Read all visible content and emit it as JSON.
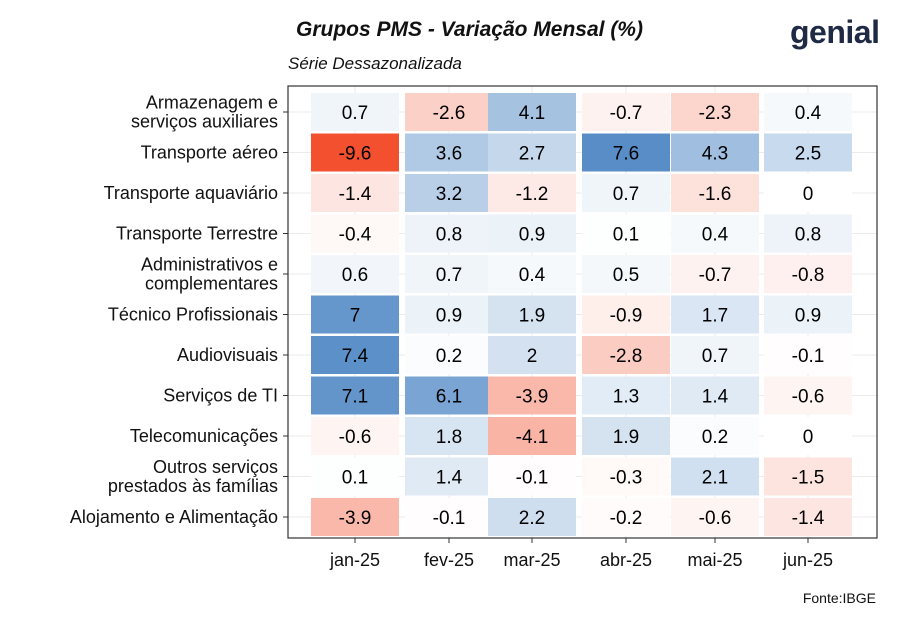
{
  "header": {
    "title": "Grupos PMS - Variação Mensal (%)",
    "subtitle": "Série Dessazonalizada",
    "brand": "genial"
  },
  "footer": {
    "source": "Fonte:IBGE"
  },
  "colors": {
    "negative_max": "#f2502e",
    "neutral": "#ffffff",
    "positive_max": "#2c6fb9",
    "panel_border": "#333333",
    "grid": "#ebebeb"
  },
  "chart_data": {
    "type": "heatmap",
    "title": "Grupos PMS - Variação Mensal (%)",
    "subtitle": "Série Dessazonalizada",
    "columns": [
      "jan-25",
      "fev-25",
      "mar-25",
      "abr-25",
      "mai-25",
      "jun-25"
    ],
    "rows": [
      {
        "label": [
          "Armazenagem e",
          "serviços auxiliares"
        ],
        "values": [
          0.7,
          -2.6,
          4.1,
          -0.7,
          -2.3,
          0.4
        ]
      },
      {
        "label": [
          "Transporte aéreo"
        ],
        "values": [
          -9.6,
          3.6,
          2.7,
          7.6,
          4.3,
          2.5
        ]
      },
      {
        "label": [
          "Transporte aquaviário"
        ],
        "values": [
          -1.4,
          3.2,
          -1.2,
          0.7,
          -1.6,
          0
        ]
      },
      {
        "label": [
          "Transporte Terrestre"
        ],
        "values": [
          -0.4,
          0.8,
          0.9,
          0.1,
          0.4,
          0.8
        ]
      },
      {
        "label": [
          "Administrativos e",
          "complementares"
        ],
        "values": [
          0.6,
          0.7,
          0.4,
          0.5,
          -0.7,
          -0.8
        ]
      },
      {
        "label": [
          "Técnico Profissionais"
        ],
        "values": [
          7,
          0.9,
          1.9,
          -0.9,
          1.7,
          0.9
        ]
      },
      {
        "label": [
          "Audiovisuais"
        ],
        "values": [
          7.4,
          0.2,
          2,
          -2.8,
          0.7,
          -0.1
        ]
      },
      {
        "label": [
          "Serviços de TI"
        ],
        "values": [
          7.1,
          6.1,
          -3.9,
          1.3,
          1.4,
          -0.6
        ]
      },
      {
        "label": [
          "Telecomunicações"
        ],
        "values": [
          -0.6,
          1.8,
          -4.1,
          1.9,
          0.2,
          0
        ]
      },
      {
        "label": [
          "Outros serviços",
          "prestados às famílias"
        ],
        "values": [
          0.1,
          1.4,
          -0.1,
          -0.3,
          2.1,
          -1.5
        ]
      },
      {
        "label": [
          "Alojamento e Alimentação"
        ],
        "values": [
          -3.9,
          -0.1,
          2.2,
          -0.2,
          -0.6,
          -1.4
        ]
      }
    ],
    "color_scale_limit": 9.6,
    "grid": true,
    "legend": "none",
    "source": "Fonte:IBGE"
  }
}
